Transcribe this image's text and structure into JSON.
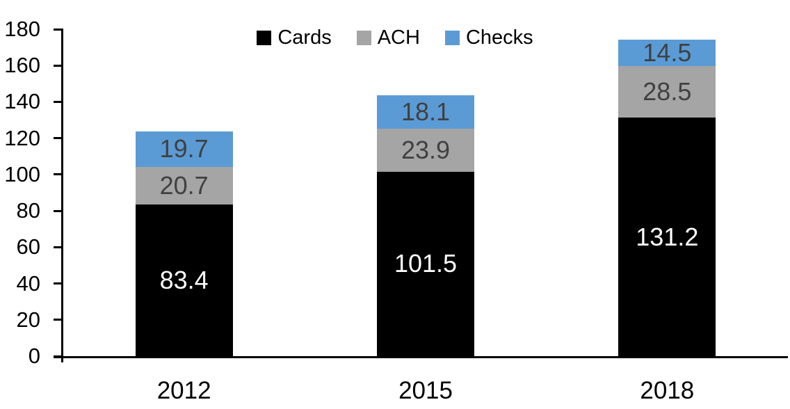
{
  "chart_data": {
    "type": "bar",
    "stacked": true,
    "title": "",
    "xlabel": "",
    "ylabel": "",
    "categories": [
      "2012",
      "2015",
      "2018"
    ],
    "series": [
      {
        "name": "Cards",
        "color": "#000000",
        "label_color": "#ffffff",
        "values": [
          83.4,
          101.5,
          131.2
        ]
      },
      {
        "name": "ACH",
        "color": "#a5a5a5",
        "label_color": "#404040",
        "values": [
          20.7,
          23.9,
          28.5
        ]
      },
      {
        "name": "Checks",
        "color": "#5b9bd5",
        "label_color": "#404040",
        "values": [
          19.7,
          18.1,
          14.5
        ]
      }
    ],
    "ylim": [
      0,
      180
    ],
    "yticks": [
      0,
      20,
      40,
      60,
      80,
      100,
      120,
      140,
      160,
      180
    ],
    "grid": false,
    "data_labels": true,
    "legend_position": "top-center",
    "axis_color": "#000000",
    "background": "#ffffff"
  }
}
